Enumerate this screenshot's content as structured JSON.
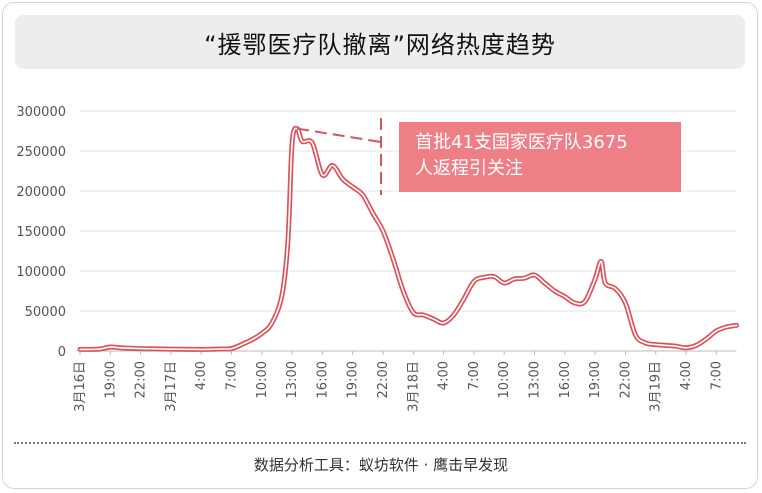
{
  "title": "“援鄂医疗队撤离”网络热度趋势",
  "source": "数据分析工具：蚁坊软件 · 鹰击早发现",
  "colors": {
    "line": "#d9535e",
    "annotation_bg": "#ee7f86",
    "grid": "#e6e6e6"
  },
  "annotation": {
    "line1": "首批41支国家医疗队3675",
    "line2": "人返程引关注"
  },
  "chart_data": {
    "type": "line",
    "title": "“援鄂医疗队撤离”网络热度趋势",
    "xlabel": "",
    "ylabel": "",
    "ylim": [
      0,
      300000
    ],
    "grid": true,
    "legend": "none",
    "y_ticks": [
      "300000",
      "250000",
      "200000",
      "150000",
      "100000",
      "50000",
      "0"
    ],
    "x_tick_labels": [
      "3月16日",
      "19:00",
      "22:00",
      "3月17日",
      "4:00",
      "7:00",
      "10:00",
      "13:00",
      "16:00",
      "19:00",
      "22:00",
      "3月18日",
      "4:00",
      "7:00",
      "10:00",
      "13:00",
      "16:00",
      "19:00",
      "22:00",
      "3月19日",
      "4:00",
      "7:00"
    ],
    "x_tick_hours": [
      0,
      3,
      6,
      9,
      12,
      15,
      18,
      21,
      24,
      27,
      30,
      33,
      36,
      39,
      42,
      45,
      48,
      51,
      54,
      57,
      60,
      63
    ],
    "series": [
      {
        "x": [
          0,
          1,
          2,
          3,
          4,
          5,
          6,
          7,
          8,
          9,
          10,
          11,
          12,
          13,
          14,
          15,
          16,
          17,
          18,
          19,
          20,
          20.6,
          21,
          21.5,
          22,
          23,
          24,
          25,
          26,
          27,
          28,
          29,
          30,
          31,
          32,
          33,
          34,
          35,
          36,
          37,
          38,
          39,
          40,
          41,
          42,
          43,
          44,
          45,
          46,
          47,
          48,
          49,
          50,
          51,
          51.6,
          52,
          53,
          54,
          55,
          56,
          57,
          58,
          59,
          60,
          61,
          62,
          63,
          64,
          65
        ],
        "y": [
          2000,
          2000,
          2500,
          5000,
          4000,
          3500,
          3000,
          2800,
          2500,
          2300,
          2200,
          2100,
          2000,
          2200,
          2500,
          3000,
          8000,
          14000,
          22000,
          35000,
          70000,
          140000,
          260000,
          278000,
          262000,
          260000,
          220000,
          232000,
          215000,
          205000,
          195000,
          172000,
          150000,
          115000,
          75000,
          48000,
          45000,
          40000,
          35000,
          45000,
          65000,
          87000,
          92000,
          93000,
          85000,
          90000,
          91000,
          95000,
          85000,
          75000,
          68000,
          60000,
          62000,
          90000,
          112000,
          85000,
          78000,
          60000,
          20000,
          10000,
          8000,
          7000,
          6000,
          4000,
          7000,
          15000,
          25000,
          30000,
          32000
        ]
      }
    ]
  }
}
